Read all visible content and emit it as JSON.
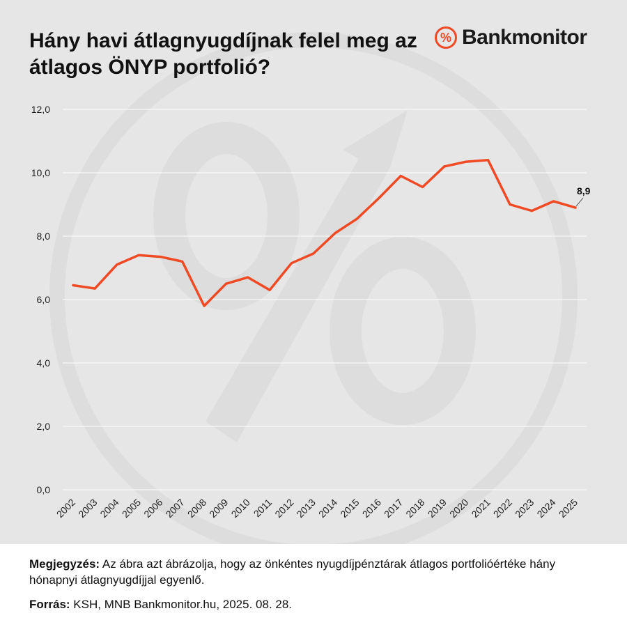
{
  "title": "Hány havi átlagnyugdíjnak felel meg az átlagos ÖNYP portfolió?",
  "logo": {
    "text": "Bankmonitor",
    "icon": "percent-icon",
    "icon_glyph": "%"
  },
  "colors": {
    "line": "#ef4a24",
    "background": "#e6e6e6",
    "grid": "#ffffff",
    "accent": "#ef4a24"
  },
  "chart_data": {
    "type": "line",
    "title": "Hány havi átlagnyugdíjnak felel meg az átlagos ÖNYP portfolió?",
    "xlabel": "",
    "ylabel": "",
    "grid": true,
    "ylim": [
      0,
      12
    ],
    "yticks": [
      "0,0",
      "2,0",
      "4,0",
      "6,0",
      "8,0",
      "10,0",
      "12,0"
    ],
    "ytick_values": [
      0,
      2,
      4,
      6,
      8,
      10,
      12
    ],
    "categories": [
      "2002",
      "2003",
      "2004",
      "2005",
      "2006",
      "2007",
      "2008",
      "2009",
      "2010",
      "2011",
      "2012",
      "2013",
      "2014",
      "2015",
      "2016",
      "2017",
      "2018",
      "2019",
      "2020",
      "2021",
      "2022",
      "2023",
      "2024",
      "2025"
    ],
    "series": [
      {
        "values": [
          6.45,
          6.35,
          7.1,
          7.4,
          7.35,
          7.2,
          5.8,
          6.5,
          6.7,
          6.3,
          7.15,
          7.45,
          8.1,
          8.55,
          9.2,
          9.9,
          9.55,
          10.2,
          10.35,
          10.4,
          9.0,
          8.8,
          9.1,
          8.9
        ]
      }
    ],
    "annotations": [
      {
        "category": "2025",
        "text": "8,9"
      }
    ]
  },
  "footer": {
    "note_label": "Megjegyzés:",
    "note_text": " Az ábra azt ábrázolja, hogy az önkéntes nyugdíjpénztárak átlagos portfolióértéke hány hónapnyi átlagnyugdíjjal egyenlő.",
    "source_label": "Forrás:",
    "source_text": " KSH, MNB Bankmonitor.hu, 2025. 08. 28."
  }
}
